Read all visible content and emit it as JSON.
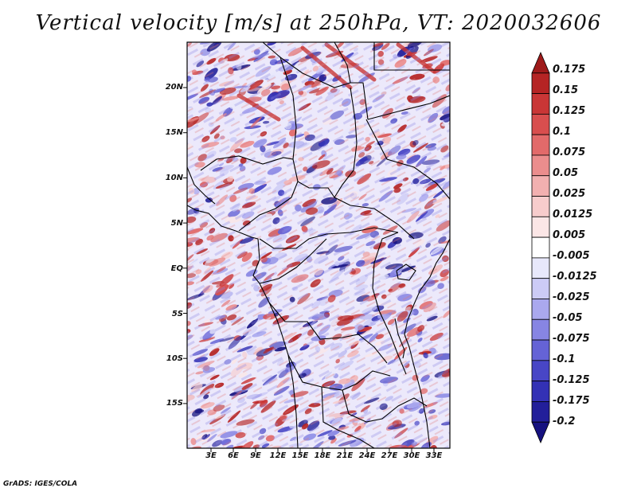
{
  "title": "Vertical velocity [m/s] at 250hPa, VT: 2020032606",
  "credit": "GrADS: IGES/COLA",
  "map": {
    "y_ticks": [
      "20N",
      "15N",
      "10N",
      "5N",
      "EQ",
      "5S",
      "10S",
      "15S"
    ],
    "x_ticks": [
      "3E",
      "6E",
      "9E",
      "12E",
      "15E",
      "18E",
      "21E",
      "24E",
      "27E",
      "30E",
      "33E"
    ],
    "lon_range": [
      0,
      35
    ],
    "lat_range": [
      -20,
      24.5
    ]
  },
  "colorbar": {
    "levels": [
      "0.175",
      "0.15",
      "0.125",
      "0.1",
      "0.075",
      "0.05",
      "0.025",
      "0.0125",
      "0.005",
      "-0.005",
      "-0.0125",
      "-0.025",
      "-0.05",
      "-0.075",
      "-0.1",
      "-0.125",
      "-0.175",
      "-0.2"
    ],
    "colors": [
      "#9e1a1a",
      "#b52424",
      "#c93636",
      "#d84e4e",
      "#e26a6a",
      "#eb8d8d",
      "#f2b0b0",
      "#f7cccc",
      "#fbe6e6",
      "#ffffff",
      "#e8e8fb",
      "#cccbf6",
      "#aaa8ee",
      "#8785e3",
      "#6563d6",
      "#4846c6",
      "#3331b5",
      "#221f9a",
      "#15117f"
    ]
  }
}
